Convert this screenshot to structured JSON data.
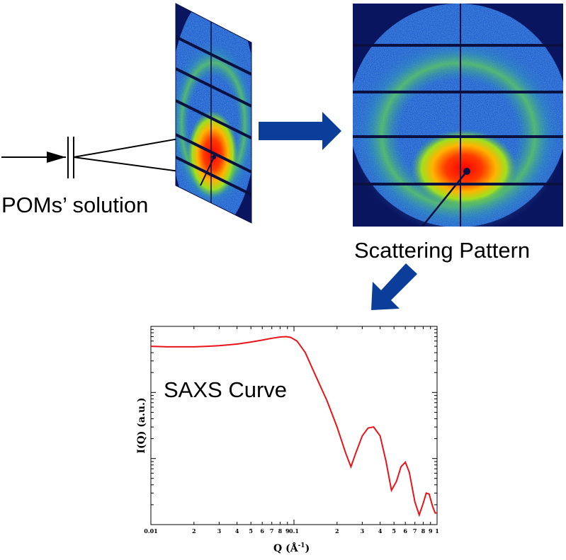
{
  "labels": {
    "sample": "POMs’ solution",
    "pattern": "Scattering Pattern",
    "curve": "SAXS Curve"
  },
  "colors": {
    "arrow": "#0b3d9a",
    "curve": "#e8141a",
    "detector_bg": "#1f4fd0"
  },
  "chart_data": {
    "type": "line",
    "title": "SAXS Curve",
    "xlabel": "Q (Å",
    "xlabel_sup": "-1",
    "xlabel_close": ")",
    "ylabel": "I(Q) (a.u.)",
    "xscale": "log",
    "yscale": "log",
    "xlim": [
      0.01,
      1
    ],
    "major_tick_labels": [
      "0.01",
      "0.1",
      "1"
    ],
    "minor_tick_labels": [
      "2",
      "3",
      "4",
      "5",
      "6",
      "7",
      "8",
      "9",
      "2",
      "3",
      "4",
      "5",
      "6",
      "7",
      "8",
      "9"
    ],
    "grid": false,
    "series": [
      {
        "x": [
          0.01,
          0.013,
          0.016,
          0.02,
          0.025,
          0.03,
          0.04,
          0.05,
          0.06,
          0.07,
          0.08,
          0.088,
          0.095,
          0.105,
          0.12,
          0.14,
          0.17,
          0.2,
          0.23,
          0.25,
          0.27,
          0.3,
          0.33,
          0.36,
          0.4,
          0.44,
          0.48,
          0.52,
          0.56,
          0.6,
          0.64,
          0.7,
          0.75,
          0.8,
          0.84,
          0.88,
          0.93,
          0.97,
          1.0
        ],
        "y": [
          0.5,
          0.49,
          0.49,
          0.49,
          0.5,
          0.51,
          0.54,
          0.58,
          0.62,
          0.66,
          0.69,
          0.7,
          0.68,
          0.6,
          0.4,
          0.19,
          0.075,
          0.03,
          0.012,
          0.0075,
          0.012,
          0.022,
          0.029,
          0.03,
          0.022,
          0.009,
          0.0033,
          0.0045,
          0.0075,
          0.0088,
          0.0062,
          0.0022,
          0.0014,
          0.0021,
          0.003,
          0.0029,
          0.0019,
          0.0015,
          0.0015
        ]
      }
    ]
  }
}
